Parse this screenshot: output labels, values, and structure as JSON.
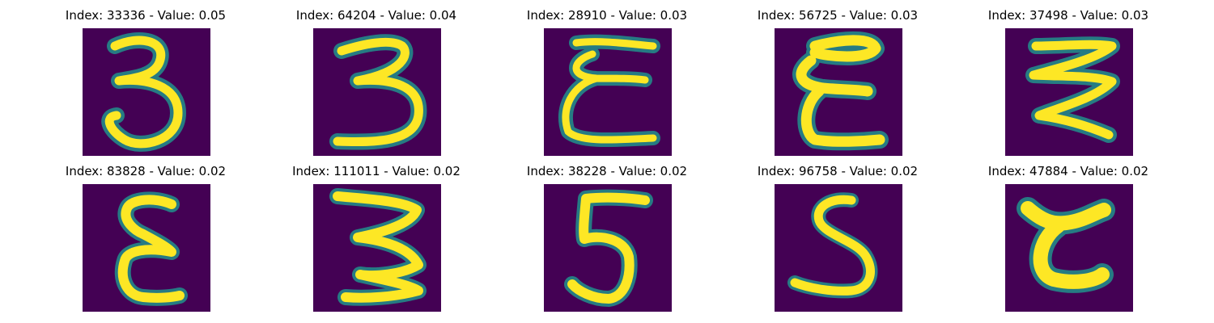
{
  "figure": {
    "panels": [
      {
        "index": "33336",
        "value": "0.05",
        "title": "Index: 33336 - Value: 0.05"
      },
      {
        "index": "64204",
        "value": "0.04",
        "title": "Index: 64204 - Value: 0.04"
      },
      {
        "index": "28910",
        "value": "0.03",
        "title": "Index: 28910 - Value: 0.03"
      },
      {
        "index": "56725",
        "value": "0.03",
        "title": "Index: 56725 - Value: 0.03"
      },
      {
        "index": "37498",
        "value": "0.03",
        "title": "Index: 37498 - Value: 0.03"
      },
      {
        "index": "83828",
        "value": "0.02",
        "title": "Index: 83828 - Value: 0.02"
      },
      {
        "index": "111011",
        "value": "0.02",
        "title": "Index: 111011 - Value: 0.02"
      },
      {
        "index": "38228",
        "value": "0.02",
        "title": "Index: 38228 - Value: 0.02"
      },
      {
        "index": "96758",
        "value": "0.02",
        "title": "Index: 96758 - Value: 0.02"
      },
      {
        "index": "47884",
        "value": "0.02",
        "title": "Index: 47884 - Value: 0.02"
      }
    ],
    "colors": {
      "background": "#440154",
      "stroke_edge": "#21918c",
      "stroke_core": "#fde725"
    }
  }
}
